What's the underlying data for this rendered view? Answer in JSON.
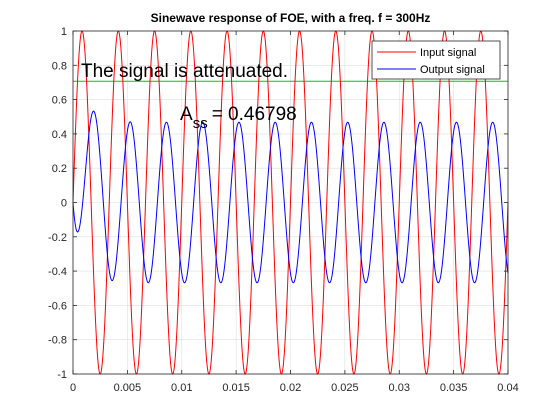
{
  "chart_data": {
    "type": "line",
    "title": "Sinewave response of FOE, with a freq. f = 300Hz",
    "xlabel": "",
    "ylabel": "",
    "xlim": [
      0,
      0.04
    ],
    "ylim": [
      -1,
      1
    ],
    "grid": true,
    "legend_position": "top-right",
    "x_ticks": [
      "0",
      "0.005",
      "0.01",
      "0.015",
      "0.02",
      "0.025",
      "0.03",
      "0.035",
      "0.04"
    ],
    "y_ticks": [
      "-1",
      "-0.8",
      "-0.6",
      "-0.4",
      "-0.2",
      "0",
      "0.2",
      "0.4",
      "0.6",
      "0.8",
      "1"
    ],
    "series": [
      {
        "name": "Input signal",
        "color": "#ff0000",
        "function": "sin",
        "frequency_hz": 300,
        "amplitude": 1
      },
      {
        "name": "Output signal",
        "color": "#0000ff",
        "function": "sin",
        "frequency_hz": 300,
        "amplitude": 0.46798,
        "phase_rad": -2.06,
        "transient_start": 0,
        "time_constant_s": 0.00103
      }
    ],
    "reference_line": {
      "y": 0.707,
      "color": "#00cc00"
    },
    "annotations": {
      "note": "The signal is attenuated.",
      "amp_symbol": "A",
      "amp_subscript": "ss",
      "amp_value": "= 0.46798"
    }
  }
}
